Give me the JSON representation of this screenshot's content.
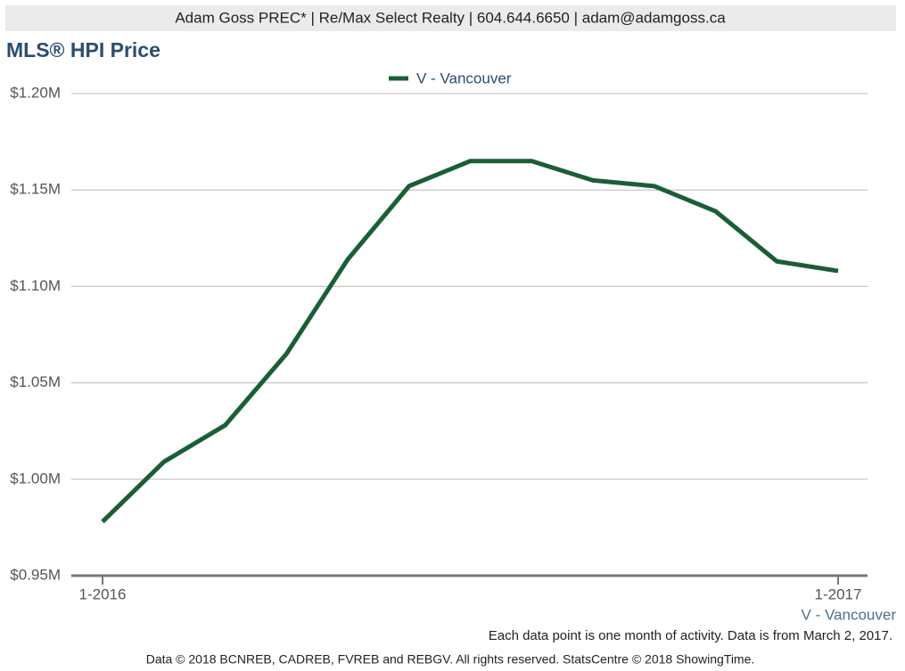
{
  "header": "Adam Goss PREC* | Re/Max Select Realty | 604.644.6650 | adam@adamgoss.ca",
  "chart_data": {
    "type": "line",
    "title": "MLS® HPI Price",
    "xlabel": "V - Vancouver",
    "categories": [
      "1-2016",
      null,
      null,
      null,
      null,
      null,
      null,
      null,
      null,
      null,
      null,
      null,
      "1-2017"
    ],
    "series": [
      {
        "name": "V - Vancouver",
        "color": "#1b5e36",
        "values": [
          978000,
          1009000,
          1028000,
          1065000,
          1114000,
          1152000,
          1165000,
          1165000,
          1155000,
          1152000,
          1139000,
          1113000,
          1108000
        ]
      }
    ],
    "ylim": [
      950000,
      1200000
    ],
    "yticks": [
      {
        "value": 950000,
        "label": "$0.95M"
      },
      {
        "value": 1000000,
        "label": "$1.00M"
      },
      {
        "value": 1050000,
        "label": "$1.05M"
      },
      {
        "value": 1100000,
        "label": "$1.10M"
      },
      {
        "value": 1150000,
        "label": "$1.15M"
      },
      {
        "value": 1200000,
        "label": "$1.20M"
      }
    ],
    "grid": true,
    "legend": "top"
  },
  "note": "Each data point is one month of activity. Data is from March 2, 2017.",
  "footer": "Data © 2018 BCNREB, CADREB, FVREB and REBGV. All rights reserved. StatsCentre © 2018 ShowingTime."
}
